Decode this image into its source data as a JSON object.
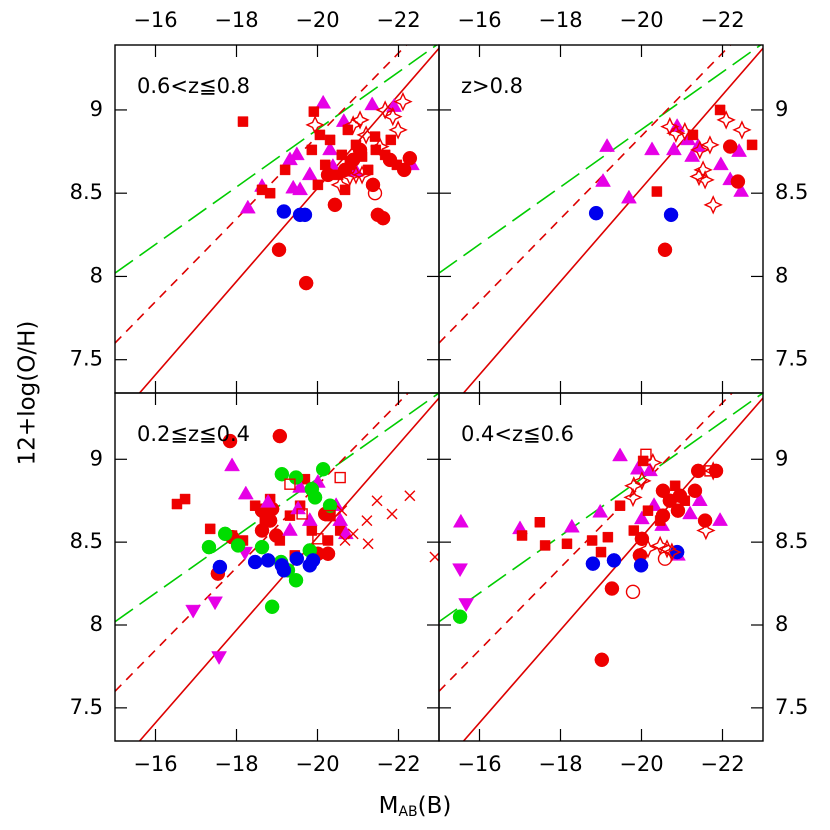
{
  "figure": {
    "ylabel": "12+log(O/H)",
    "xlabel": {
      "main": "M",
      "sub": "AB",
      "tail": "(B)"
    }
  },
  "chart_data": [
    {
      "type": "scatter",
      "label": "0.6<z≦0.8",
      "xlim": [
        -15,
        -23
      ],
      "ylim": [
        7.3,
        9.39
      ],
      "xticks": [
        {
          "value": -16,
          "label": "−16"
        },
        {
          "value": -18,
          "label": "−18"
        },
        {
          "value": -20,
          "label": "−20"
        },
        {
          "value": -22,
          "label": "−22"
        }
      ],
      "yticks": [
        7.5,
        8,
        8.5,
        9
      ],
      "lines": [
        {
          "color": "#00cc00",
          "dash": "long",
          "x": [
            -15,
            -23
          ],
          "y": [
            8.02,
            9.4
          ]
        },
        {
          "color": "#dd0000",
          "dash": "short",
          "x": [
            -15,
            -23
          ],
          "y": [
            7.6,
            9.59
          ]
        },
        {
          "color": "#dd0000",
          "dash": "solid",
          "x": [
            -15,
            -23
          ],
          "y": [
            7.13,
            9.37
          ]
        }
      ],
      "series": [
        {
          "marker": "triangle-up",
          "color": "#e600e6",
          "x": [
            -18.28,
            -18.63,
            -19.32,
            -19.49,
            -19.57,
            -19.81,
            -20.14,
            -20.31,
            -20.38,
            -20.65,
            -20.95,
            -21.35,
            -21.89,
            -22.33,
            -19.4
          ],
          "y": [
            8.41,
            8.54,
            8.7,
            8.73,
            8.52,
            8.61,
            9.04,
            8.76,
            8.66,
            8.93,
            8.63,
            9.03,
            9.02,
            8.67,
            8.53
          ]
        },
        {
          "marker": "square-filled",
          "color": "#ee0000",
          "x": [
            -18.16,
            -18.63,
            -18.83,
            -19.2,
            -19.86,
            -20.01,
            -20.19,
            -20.31,
            -20.51,
            -20.6,
            -20.75,
            -20.8,
            -20.95,
            -21.1,
            -21.25,
            -21.42,
            -21.44,
            -21.67,
            -21.81,
            -21.96,
            -20.68,
            -20.06,
            -19.91
          ],
          "y": [
            8.93,
            8.52,
            8.5,
            8.64,
            8.76,
            8.55,
            8.67,
            8.82,
            8.61,
            8.73,
            8.88,
            8.67,
            8.79,
            8.72,
            8.64,
            8.84,
            8.76,
            8.73,
            8.82,
            8.67,
            8.52,
            8.85,
            8.99
          ]
        },
        {
          "marker": "circle-filled",
          "color": "#ee0000",
          "x": [
            -19.05,
            -19.72,
            -20.43,
            -20.68,
            -21.05,
            -21.37,
            -21.49,
            -21.62,
            -21.79,
            -22.14,
            -22.28,
            -20.88,
            -20.26
          ],
          "y": [
            8.16,
            7.96,
            8.43,
            8.64,
            8.76,
            8.55,
            8.37,
            8.35,
            8.7,
            8.64,
            8.71,
            8.7,
            8.61
          ]
        },
        {
          "marker": "circle-filled",
          "color": "#0000ee",
          "x": [
            -19.17,
            -19.57,
            -19.69
          ],
          "y": [
            8.39,
            8.37,
            8.37
          ]
        },
        {
          "marker": "circle-open",
          "color": "#ee0000",
          "x": [
            -21.42
          ],
          "y": [
            8.5
          ]
        },
        {
          "marker": "star-open",
          "color": "#ee0000",
          "x": [
            -19.94,
            -20.88,
            -21.05,
            -21.67,
            -21.86,
            -22.11,
            -21.99,
            -20.56,
            -20.8,
            -21.1,
            -21.2,
            -21.54,
            -20.95
          ],
          "y": [
            8.91,
            8.91,
            8.94,
            9.0,
            8.96,
            9.05,
            8.88,
            8.55,
            8.6,
            8.61,
            8.85,
            8.78,
            8.61
          ]
        }
      ]
    },
    {
      "type": "scatter",
      "label": "z>0.8",
      "xlim": [
        -15,
        -23
      ],
      "ylim": [
        7.3,
        9.39
      ],
      "xticks": [
        {
          "value": -16,
          "label": "−16"
        },
        {
          "value": -18,
          "label": "−18"
        },
        {
          "value": -20,
          "label": "−20"
        },
        {
          "value": -22,
          "label": "−22"
        }
      ],
      "yticks": [
        7.5,
        8,
        8.5,
        9
      ],
      "lines": [
        {
          "color": "#00cc00",
          "dash": "long",
          "x": [
            -15,
            -23
          ],
          "y": [
            8.02,
            9.4
          ]
        },
        {
          "color": "#dd0000",
          "dash": "short",
          "x": [
            -15,
            -23
          ],
          "y": [
            7.6,
            9.59
          ]
        },
        {
          "color": "#dd0000",
          "dash": "solid",
          "x": [
            -15,
            -23
          ],
          "y": [
            7.13,
            9.37
          ]
        }
      ],
      "series": [
        {
          "marker": "triangle-up",
          "color": "#e600e6",
          "x": [
            -19.15,
            -19.05,
            -19.69,
            -20.26,
            -20.8,
            -21.4,
            -20.88,
            -21.15,
            -21.96,
            -22.46,
            -22.41,
            -21.25,
            -22.19
          ],
          "y": [
            8.78,
            8.57,
            8.47,
            8.76,
            8.76,
            8.78,
            8.9,
            8.82,
            8.67,
            8.51,
            8.75,
            8.72,
            8.58
          ]
        },
        {
          "marker": "square-filled",
          "color": "#ee0000",
          "x": [
            -20.38,
            -21.27,
            -21.94,
            -22.73
          ],
          "y": [
            8.51,
            8.85,
            9.0,
            8.79
          ]
        },
        {
          "marker": "circle-filled",
          "color": "#ee0000",
          "x": [
            -20.58,
            -22.19,
            -22.38
          ],
          "y": [
            8.16,
            8.78,
            8.57
          ]
        },
        {
          "marker": "circle-filled",
          "color": "#0000ee",
          "x": [
            -18.88,
            -20.73
          ],
          "y": [
            8.38,
            8.37
          ]
        },
        {
          "marker": "star-open",
          "color": "#ee0000",
          "x": [
            -20.7,
            -20.85,
            -21.07,
            -21.44,
            -21.52,
            -21.57,
            -21.77,
            -21.69,
            -22.09,
            -22.48,
            -21.42
          ],
          "y": [
            8.9,
            8.86,
            8.87,
            8.76,
            8.64,
            8.58,
            8.43,
            8.79,
            8.94,
            8.88,
            8.6
          ]
        }
      ]
    },
    {
      "type": "scatter",
      "label": "0.2≦z≦0.4",
      "xlim": [
        -15,
        -23
      ],
      "ylim": [
        7.3,
        9.4
      ],
      "xticks": [
        {
          "value": -16,
          "label": "−16"
        },
        {
          "value": -18,
          "label": "−18"
        },
        {
          "value": -20,
          "label": "−20"
        },
        {
          "value": -22,
          "label": "−22"
        }
      ],
      "yticks": [
        7.5,
        8,
        8.5,
        9
      ],
      "lines": [
        {
          "color": "#00cc00",
          "dash": "long",
          "x": [
            -15,
            -23
          ],
          "y": [
            8.02,
            9.4
          ]
        },
        {
          "color": "#dd0000",
          "dash": "short",
          "x": [
            -15,
            -23
          ],
          "y": [
            7.6,
            9.59
          ]
        },
        {
          "color": "#dd0000",
          "dash": "solid",
          "x": [
            -15,
            -23
          ],
          "y": [
            7.13,
            9.37
          ]
        }
      ],
      "series": [
        {
          "marker": "square-filled",
          "color": "#ee0000",
          "x": [
            -16.53,
            -16.73,
            -17.35,
            -17.89,
            -18.16,
            -18.46,
            -18.7,
            -19.07,
            -19.32,
            -19.57,
            -19.86,
            -20.31,
            -20.56,
            -20.26,
            -19.44,
            -18.83,
            -19.69
          ],
          "y": [
            8.73,
            8.76,
            8.58,
            8.54,
            8.51,
            8.72,
            8.63,
            8.51,
            8.66,
            8.72,
            8.57,
            8.66,
            8.57,
            8.51,
            8.42,
            8.76,
            8.88
          ]
        },
        {
          "marker": "circle-filled",
          "color": "#ee0000",
          "x": [
            -17.84,
            -19.07,
            -17.54,
            -17.89,
            -18.63,
            -18.88,
            -18.83,
            -18.98,
            -20.01,
            -20.26,
            -20.19,
            -18.63
          ],
          "y": [
            9.11,
            9.14,
            8.31,
            8.53,
            8.69,
            8.7,
            8.63,
            8.54,
            8.43,
            8.43,
            8.67,
            8.57
          ]
        },
        {
          "marker": "triangle-up",
          "color": "#e600e6",
          "x": [
            -17.89,
            -18.23,
            -18.78,
            -19.57,
            -19.52,
            -19.81,
            -20.46,
            -20.7,
            -20.56,
            -19.32,
            -20.01
          ],
          "y": [
            8.96,
            8.79,
            8.74,
            8.83,
            8.7,
            8.63,
            8.72,
            8.55,
            8.63,
            8.57,
            8.86
          ]
        },
        {
          "marker": "triangle-down",
          "color": "#e600e6",
          "x": [
            -16.93,
            -17.47,
            -17.57,
            -18.21
          ],
          "y": [
            8.09,
            8.14,
            7.81,
            8.44
          ]
        },
        {
          "marker": "circle-filled",
          "color": "#00dd00",
          "x": [
            -17.32,
            -17.72,
            -18.04,
            -18.63,
            -18.88,
            -19.27,
            -19.47,
            -19.81,
            -19.94,
            -20.14,
            -19.12,
            -19.47,
            -20.31,
            -19.86,
            -19.1
          ],
          "y": [
            8.47,
            8.55,
            8.48,
            8.47,
            8.11,
            8.33,
            8.27,
            8.45,
            8.77,
            8.94,
            8.91,
            8.89,
            8.72,
            8.82,
            8.38
          ]
        },
        {
          "marker": "circle-filled",
          "color": "#0000ee",
          "x": [
            -17.59,
            -18.46,
            -18.78,
            -19.12,
            -19.17,
            -19.49,
            -19.89,
            -19.81
          ],
          "y": [
            8.35,
            8.38,
            8.39,
            8.36,
            8.33,
            8.4,
            8.39,
            8.36
          ]
        },
        {
          "marker": "square-open",
          "color": "#ee0000",
          "x": [
            -19.32,
            -20.56,
            -20.01,
            -20.31,
            -19.62
          ],
          "y": [
            8.85,
            8.89,
            8.52,
            8.66,
            8.67
          ]
        },
        {
          "marker": "cross",
          "color": "#ee0000",
          "x": [
            -20.6,
            -20.88,
            -21.22,
            -21.47,
            -21.84,
            -21.25,
            -20.68,
            -22.28,
            -22.9
          ],
          "y": [
            8.69,
            8.55,
            8.63,
            8.75,
            8.67,
            8.49,
            8.51,
            8.78,
            8.41
          ]
        }
      ]
    },
    {
      "type": "scatter",
      "label": "0.4<z≦0.6",
      "xlim": [
        -15,
        -23
      ],
      "ylim": [
        7.3,
        9.4
      ],
      "xticks": [
        {
          "value": -16,
          "label": "−16"
        },
        {
          "value": -18,
          "label": "−18"
        },
        {
          "value": -20,
          "label": "−20"
        },
        {
          "value": -22,
          "label": "−22"
        }
      ],
      "yticks": [
        7.5,
        8,
        8.5,
        9
      ],
      "lines": [
        {
          "color": "#00cc00",
          "dash": "long",
          "x": [
            -15,
            -23
          ],
          "y": [
            8.02,
            9.4
          ]
        },
        {
          "color": "#dd0000",
          "dash": "short",
          "x": [
            -15,
            -23
          ],
          "y": [
            7.6,
            9.59
          ]
        },
        {
          "color": "#dd0000",
          "dash": "solid",
          "x": [
            -15,
            -23
          ],
          "y": [
            7.13,
            9.37
          ]
        }
      ],
      "series": [
        {
          "marker": "triangle-up",
          "color": "#e600e6",
          "x": [
            -18.28,
            -18.98,
            -19.47,
            -19.91,
            -20.21,
            -20.01,
            -20.31,
            -20.51,
            -21.2,
            -21.44,
            -21.94,
            -20.9,
            -15.54,
            -17.0
          ],
          "y": [
            8.59,
            8.68,
            9.02,
            8.94,
            8.93,
            8.64,
            8.72,
            8.6,
            8.67,
            8.75,
            8.63,
            8.42,
            8.62,
            8.58
          ]
        },
        {
          "marker": "triangle-down",
          "color": "#e600e6",
          "x": [
            -15.52,
            -15.67
          ],
          "y": [
            8.34,
            8.13
          ]
        },
        {
          "marker": "circle-filled",
          "color": "#00dd00",
          "x": [
            -15.52
          ],
          "y": [
            8.05
          ]
        },
        {
          "marker": "square-filled",
          "color": "#ee0000",
          "x": [
            -17.05,
            -17.49,
            -18.16,
            -18.78,
            -19.17,
            -19.47,
            -19.81,
            -20.16,
            -20.46,
            -21.07,
            -20.04,
            -20.83,
            -17.62,
            -19.0
          ],
          "y": [
            8.54,
            8.62,
            8.49,
            8.51,
            8.53,
            8.72,
            8.57,
            8.69,
            8.63,
            8.75,
            8.99,
            8.84,
            8.48,
            8.44
          ]
        },
        {
          "marker": "circle-filled",
          "color": "#ee0000",
          "x": [
            -19.27,
            -19.02,
            -20.01,
            -19.96,
            -20.53,
            -20.7,
            -20.95,
            -21.32,
            -20.53,
            -20.9,
            -21.4,
            -21.84,
            -21.57
          ],
          "y": [
            8.22,
            7.79,
            8.52,
            8.42,
            8.81,
            8.75,
            8.78,
            8.81,
            8.66,
            8.69,
            8.93,
            8.93,
            8.63
          ]
        },
        {
          "marker": "circle-filled",
          "color": "#0000ee",
          "x": [
            -18.8,
            -19.32,
            -19.99,
            -20.88
          ],
          "y": [
            8.37,
            8.39,
            8.36,
            8.44
          ]
        },
        {
          "marker": "circle-open",
          "color": "#ee0000",
          "x": [
            -19.79,
            -20.58
          ],
          "y": [
            8.2,
            8.4
          ]
        },
        {
          "marker": "square-open",
          "color": "#ee0000",
          "x": [
            -20.11,
            -21.69
          ],
          "y": [
            9.03,
            8.93
          ]
        },
        {
          "marker": "star-open",
          "color": "#ee0000",
          "x": [
            -19.81,
            -20.01,
            -20.28,
            -19.79,
            -20.46,
            -20.63,
            -20.75,
            -21.59,
            -21.77,
            -20.16
          ],
          "y": [
            8.84,
            8.87,
            8.98,
            8.77,
            8.48,
            8.46,
            8.44,
            8.57,
            8.93,
            8.46
          ]
        }
      ]
    }
  ]
}
